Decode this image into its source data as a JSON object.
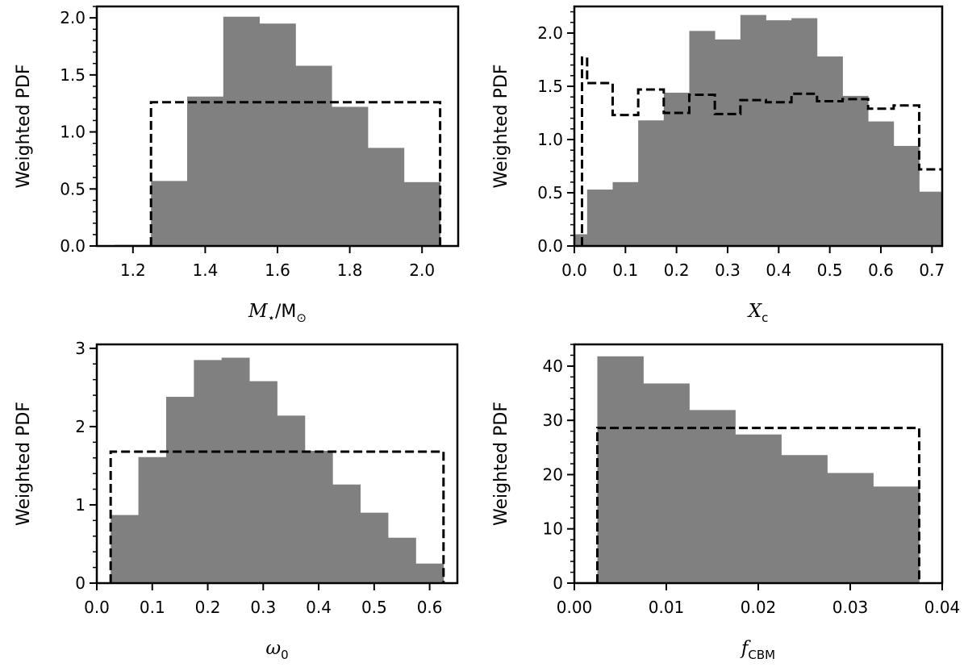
{
  "chart_data": [
    {
      "type": "histogram",
      "xlabel_parts": {
        "main": "M",
        "sub": "⋆",
        "rest": "/M",
        "sub2": "⊙"
      },
      "ylabel": "Weighted PDF",
      "xlim": [
        1.1,
        2.1
      ],
      "ylim": [
        0,
        2.1
      ],
      "xticks": [
        1.2,
        1.4,
        1.6,
        1.8,
        2.0
      ],
      "xtick_labels": [
        "1.2",
        "1.4",
        "1.6",
        "1.8",
        "2.0"
      ],
      "yticks": [
        0,
        0.5,
        1.0,
        1.5,
        2.0
      ],
      "ytick_labels": [
        "0.0",
        "0.5",
        "1.0",
        "1.5",
        "2.0"
      ],
      "yminor_step": 0.1,
      "posterior": {
        "bin_edges": [
          1.15,
          1.25,
          1.35,
          1.45,
          1.55,
          1.65,
          1.75,
          1.85,
          1.95,
          2.05
        ],
        "values": [
          0.01,
          0.57,
          1.31,
          2.01,
          1.95,
          1.58,
          1.22,
          0.86,
          0.56
        ]
      },
      "prior": {
        "bin_edges": [
          1.25,
          2.05
        ],
        "values": [
          1.26
        ]
      },
      "colors": {
        "posterior": "#808080",
        "prior": "#000000"
      }
    },
    {
      "type": "histogram",
      "xlabel_parts": {
        "main": "X",
        "sub": "c"
      },
      "ylabel": "Weighted PDF",
      "xlim": [
        0.0,
        0.72
      ],
      "ylim": [
        0,
        2.25
      ],
      "xticks": [
        0.0,
        0.1,
        0.2,
        0.3,
        0.4,
        0.5,
        0.6,
        0.7
      ],
      "xtick_labels": [
        "0.0",
        "0.1",
        "0.2",
        "0.3",
        "0.4",
        "0.5",
        "0.6",
        "0.7"
      ],
      "yticks": [
        0,
        0.5,
        1.0,
        1.5,
        2.0
      ],
      "ytick_labels": [
        "0.0",
        "0.5",
        "1.0",
        "1.5",
        "2.0"
      ],
      "yminor_step": 0.1,
      "posterior": {
        "bin_edges": [
          0.0,
          0.025,
          0.075,
          0.125,
          0.175,
          0.225,
          0.275,
          0.325,
          0.375,
          0.425,
          0.475,
          0.525,
          0.575,
          0.625,
          0.675,
          0.72
        ],
        "values": [
          0.11,
          0.53,
          0.6,
          1.18,
          1.44,
          2.02,
          1.94,
          2.17,
          2.12,
          2.14,
          1.78,
          1.41,
          1.17,
          0.94,
          0.51
        ]
      },
      "prior": {
        "bin_edges": [
          0.015,
          0.025,
          0.075,
          0.125,
          0.175,
          0.225,
          0.275,
          0.325,
          0.375,
          0.425,
          0.475,
          0.525,
          0.575,
          0.625,
          0.675,
          0.72
        ],
        "values": [
          1.77,
          1.53,
          1.23,
          1.47,
          1.25,
          1.42,
          1.24,
          1.37,
          1.35,
          1.43,
          1.36,
          1.38,
          1.29,
          1.32,
          0.72
        ]
      },
      "colors": {
        "posterior": "#808080",
        "prior": "#000000"
      }
    },
    {
      "type": "histogram",
      "xlabel_parts": {
        "main": "ω",
        "sub": "0"
      },
      "ylabel": "Weighted PDF",
      "xlim": [
        0.0,
        0.65
      ],
      "ylim": [
        0,
        3.05
      ],
      "xticks": [
        0.0,
        0.1,
        0.2,
        0.3,
        0.4,
        0.5,
        0.6
      ],
      "xtick_labels": [
        "0.0",
        "0.1",
        "0.2",
        "0.3",
        "0.4",
        "0.5",
        "0.6"
      ],
      "yticks": [
        0,
        1,
        2,
        3
      ],
      "ytick_labels": [
        "0",
        "1",
        "2",
        "3"
      ],
      "yminor_step": 0.2,
      "posterior": {
        "bin_edges": [
          0.025,
          0.075,
          0.125,
          0.175,
          0.225,
          0.275,
          0.325,
          0.375,
          0.425,
          0.475,
          0.525,
          0.575,
          0.625
        ],
        "values": [
          0.87,
          1.61,
          2.38,
          2.85,
          2.88,
          2.58,
          2.14,
          1.69,
          1.26,
          0.9,
          0.58,
          0.25
        ]
      },
      "prior": {
        "bin_edges": [
          0.025,
          0.625
        ],
        "values": [
          1.68
        ]
      },
      "colors": {
        "posterior": "#808080",
        "prior": "#000000"
      }
    },
    {
      "type": "histogram",
      "xlabel_parts": {
        "main": "f",
        "sub": "CBM"
      },
      "ylabel": "Weighted PDF",
      "xlim": [
        0.0,
        0.04
      ],
      "ylim": [
        0,
        44
      ],
      "xticks": [
        0.0,
        0.01,
        0.02,
        0.03,
        0.04
      ],
      "xtick_labels": [
        "0.00",
        "0.01",
        "0.02",
        "0.03",
        "0.04"
      ],
      "yticks": [
        0,
        10,
        20,
        30,
        40
      ],
      "ytick_labels": [
        "0",
        "10",
        "20",
        "30",
        "40"
      ],
      "yminor_step": 2,
      "posterior": {
        "bin_edges": [
          0.0,
          0.0025,
          0.0075,
          0.0125,
          0.0175,
          0.0225,
          0.0275,
          0.0325,
          0.0375
        ],
        "values": [
          0.2,
          41.8,
          36.8,
          31.9,
          27.4,
          23.6,
          20.3,
          17.8
        ]
      },
      "prior": {
        "bin_edges": [
          0.0025,
          0.0375
        ],
        "values": [
          28.6
        ]
      },
      "colors": {
        "posterior": "#808080",
        "prior": "#000000"
      }
    }
  ]
}
